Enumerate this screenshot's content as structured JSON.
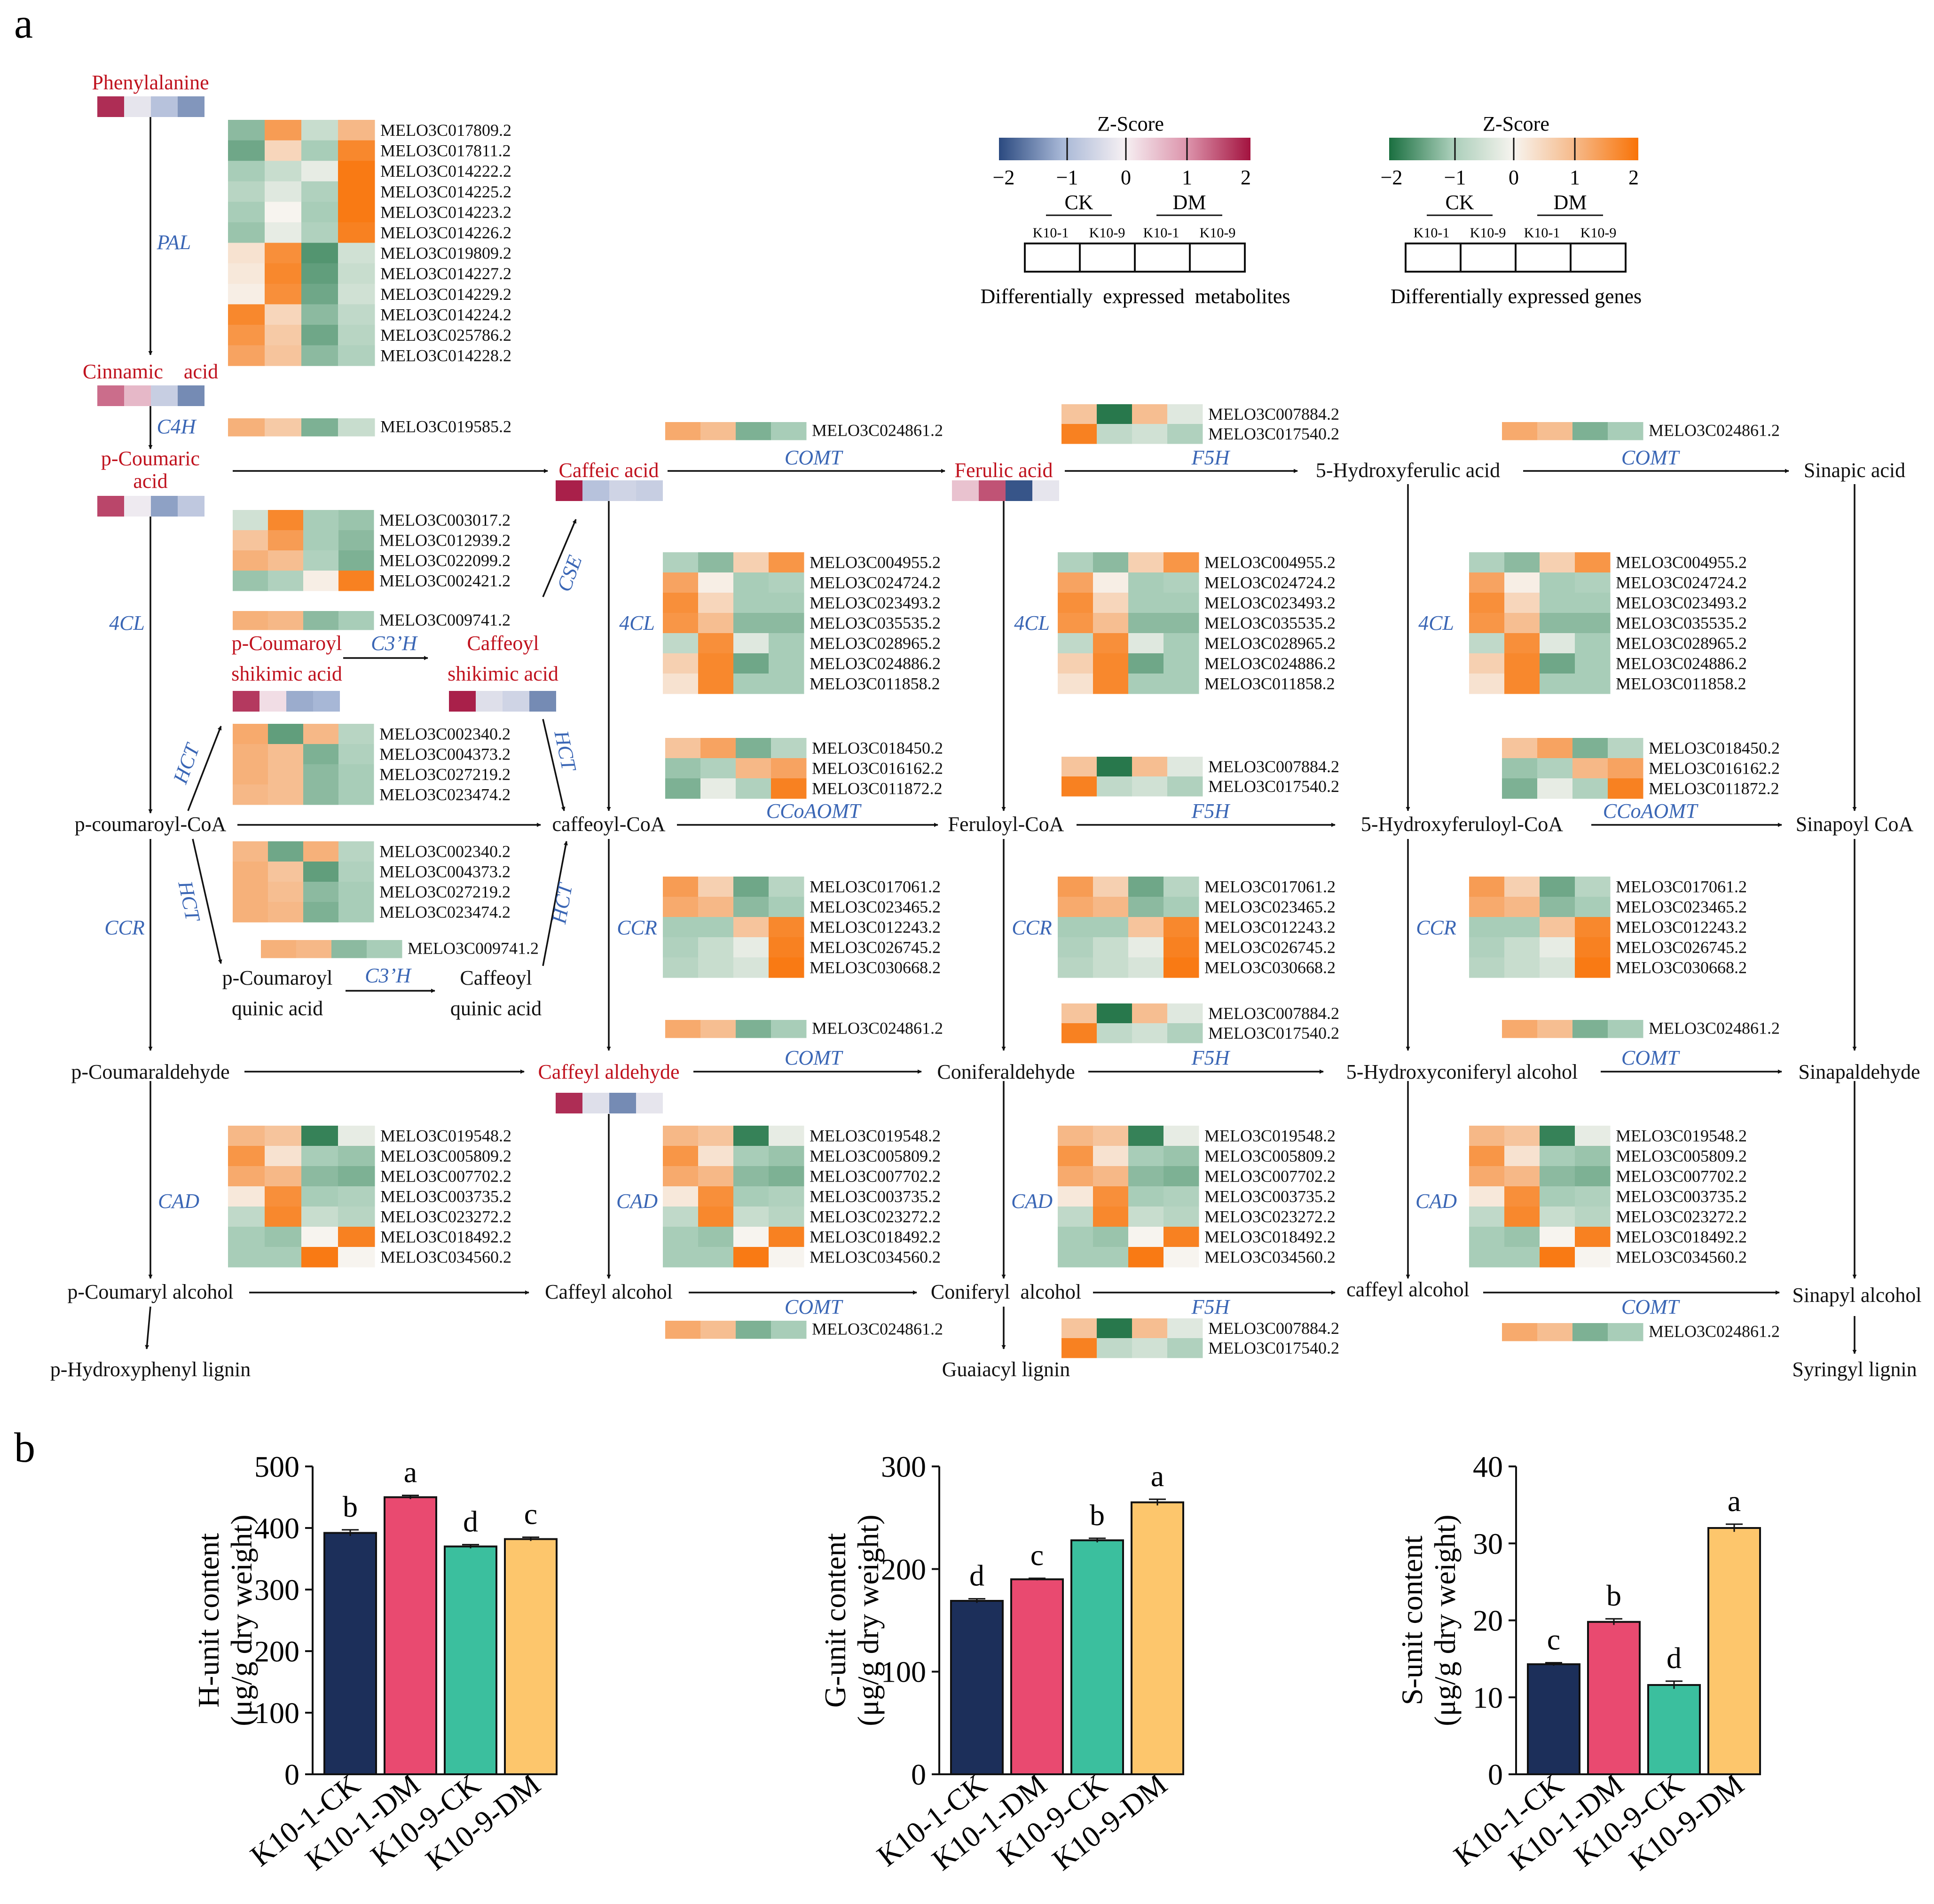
{
  "panel_labels": {
    "a": "a",
    "b": "b"
  },
  "colors": {
    "metab_scale": [
      "#2b4a80",
      "#a7b7d6",
      "#f6f0f3",
      "#dc93ab",
      "#a3133f"
    ],
    "gene_scale": [
      "#1a6f40",
      "#a8cdb8",
      "#f7f4ef",
      "#f6b887",
      "#f97307"
    ],
    "met_label": "#c0121e",
    "enzyme": "#3a66b5",
    "bar_fills": [
      "#1c2f5a",
      "#e94a70",
      "#3bbf9e",
      "#fdc66c"
    ]
  },
  "legend": {
    "zscore_title": "Z-Score",
    "scale_ticks": [
      "−2",
      "−1",
      "0",
      "1",
      "2"
    ],
    "group_ck": "CK",
    "group_dm": "DM",
    "samples": [
      "K10-1",
      "K10-9",
      "K10-1",
      "K10-9"
    ],
    "metab_caption": "Differentially  expressed  metabolites",
    "gene_caption": "Differentially expressed genes"
  },
  "metabolites": {
    "phenylalanine": {
      "label": "Phenylalanine",
      "z": [
        1.8,
        -0.2,
        -0.8,
        -1.3
      ]
    },
    "cinnamic": {
      "label": "Cinnamic    acid",
      "z": [
        1.3,
        0.6,
        -0.6,
        -1.4
      ]
    },
    "p_coumaric": {
      "label_l1": "p-Coumaric",
      "label_l2": "acid",
      "z": [
        1.6,
        -0.1,
        -1.2,
        -0.7
      ]
    },
    "caffeic": {
      "label": "Caffeic acid",
      "z": [
        1.9,
        -0.8,
        -0.5,
        -0.6
      ]
    },
    "ferulic": {
      "label": "Ferulic acid",
      "z": [
        0.5,
        1.5,
        -1.9,
        -0.2
      ]
    },
    "p_coumaroyl_shikimic": {
      "label_l1": "p-Coumaroyl",
      "label_l2": "shikimic acid",
      "z": [
        1.7,
        0.2,
        -1.1,
        -1.0
      ]
    },
    "caffeoyl_shikimic": {
      "label_l1": "Caffeoyl",
      "label_l2": "shikimic acid",
      "z": [
        1.9,
        -0.3,
        -0.5,
        -1.4
      ]
    },
    "caffeyl_aldehyde": {
      "label": "Caffeyl aldehyde",
      "z": [
        1.8,
        -0.3,
        -1.4,
        -0.2
      ]
    }
  },
  "compounds": {
    "five_hydroxyferulic_acid": "5-Hydroxyferulic acid",
    "sinapic_acid": "Sinapic acid",
    "p_coumaroyl_coa": "p-coumaroyl-CoA",
    "caffeoyl_coa": "caffeoyl-CoA",
    "feruloyl_coa": "Feruloyl-CoA",
    "five_hydroxyferuloyl_coa": "5-Hydroxyferuloyl-CoA",
    "sinapoyl_coa": "Sinapoyl CoA",
    "p_coumaroyl_quinic_l1": "p-Coumaroyl",
    "p_coumaroyl_quinic_l2": "quinic acid",
    "caffeoyl_quinic_l1": "Caffeoyl",
    "caffeoyl_quinic_l2": "quinic acid",
    "p_coumaraldehyde": "p-Coumaraldehyde",
    "coniferaldehyde": "Coniferaldehyde",
    "five_hydroxyconiferyl_alcohol": "5-Hydroxyconiferyl alcohol",
    "sinapaldehyde": "Sinapaldehyde",
    "p_coumaryl_alcohol": "p-Coumaryl alcohol",
    "caffeyl_alcohol_1": "Caffeyl alcohol",
    "coniferyl_alcohol": "Coniferyl  alcohol",
    "caffeyl_alcohol_2": "caffeyl alcohol",
    "sinapyl_alcohol": "Sinapyl alcohol",
    "p_hydroxyphenyl_lignin": "p-Hydroxyphenyl lignin",
    "guaiacyl_lignin": "Guaiacyl lignin",
    "syringyl_lignin": "Syringyl lignin"
  },
  "enzymes": {
    "pal": "PAL",
    "c4h": "C4H",
    "fourcl": "4CL",
    "ccr": "CCR",
    "cad": "CAD",
    "cse": "CSE",
    "c3h": "C3’H",
    "hct": "HCT",
    "comt": "COMT",
    "f5h": "F5H",
    "ccoaomt": "CCoAOMT"
  },
  "gene_sets": {
    "PAL": {
      "genes": [
        "MELO3C017809.2",
        "MELO3C017811.2",
        "MELO3C014222.2",
        "MELO3C014225.2",
        "MELO3C014223.2",
        "MELO3C014226.2",
        "MELO3C019809.2",
        "MELO3C014227.2",
        "MELO3C014229.2",
        "MELO3C014224.2",
        "MELO3C025786.2",
        "MELO3C014228.2"
      ],
      "z": [
        [
          -1.2,
          1.4,
          -0.6,
          1.0
        ],
        [
          -1.4,
          0.5,
          -1.0,
          1.7
        ],
        [
          -1.0,
          -0.6,
          -0.2,
          1.9
        ],
        [
          -0.8,
          -0.3,
          -0.9,
          1.9
        ],
        [
          -1.0,
          0.0,
          -1.0,
          1.9
        ],
        [
          -1.1,
          -0.2,
          -0.9,
          1.8
        ],
        [
          0.3,
          1.6,
          -1.6,
          -0.5
        ],
        [
          0.2,
          1.7,
          -1.5,
          -0.6
        ],
        [
          0.1,
          1.6,
          -1.4,
          -0.5
        ],
        [
          1.7,
          0.5,
          -1.2,
          -0.7
        ],
        [
          1.5,
          0.7,
          -1.4,
          -0.8
        ],
        [
          1.3,
          0.8,
          -1.2,
          -0.9
        ]
      ]
    },
    "C4H": {
      "genes": [
        "MELO3C019585.2"
      ],
      "z": [
        [
          1.1,
          0.7,
          -1.3,
          -0.6
        ]
      ]
    },
    "CSE": {
      "genes": [
        "MELO3C003017.2",
        "MELO3C012939.2",
        "MELO3C022099.2",
        "MELO3C002421.2"
      ],
      "z": [
        [
          -0.5,
          1.7,
          -1.0,
          -1.1
        ],
        [
          0.8,
          1.4,
          -1.0,
          -1.2
        ],
        [
          1.1,
          0.9,
          -0.9,
          -1.3
        ],
        [
          -1.1,
          -0.9,
          0.1,
          1.8
        ]
      ]
    },
    "CSE2": {
      "genes": [
        "MELO3C009741.2"
      ],
      "z": [
        [
          1.1,
          1.0,
          -1.2,
          -1.0
        ]
      ]
    },
    "HCT": {
      "genes": [
        "MELO3C002340.2",
        "MELO3C004373.2",
        "MELO3C027219.2",
        "MELO3C023474.2"
      ],
      "z": [
        [
          1.2,
          -1.5,
          1.0,
          -0.8
        ],
        [
          1.1,
          0.9,
          -1.3,
          -0.9
        ],
        [
          1.1,
          0.9,
          -1.2,
          -1.0
        ],
        [
          1.0,
          0.9,
          -1.2,
          -1.0
        ]
      ]
    },
    "HCT2": {
      "genes": [
        "MELO3C002340.2",
        "MELO3C004373.2",
        "MELO3C027219.2",
        "MELO3C023474.2"
      ],
      "z": [
        [
          1.0,
          -1.4,
          1.1,
          -0.8
        ],
        [
          1.1,
          0.8,
          -1.5,
          -0.9
        ],
        [
          1.1,
          0.9,
          -1.2,
          -1.0
        ],
        [
          1.1,
          1.0,
          -1.3,
          -1.0
        ]
      ]
    },
    "HCTQ": {
      "genes": [
        "MELO3C009741.2"
      ],
      "z": [
        [
          1.1,
          1.0,
          -1.2,
          -1.0
        ]
      ]
    },
    "FourCL": {
      "genes": [
        "MELO3C004955.2",
        "MELO3C024724.2",
        "MELO3C023493.2",
        "MELO3C035535.2",
        "MELO3C028965.2",
        "MELO3C024886.2",
        "MELO3C011858.2"
      ],
      "z": [
        [
          -0.9,
          -1.2,
          0.6,
          1.5
        ],
        [
          1.3,
          0.1,
          -1.0,
          -0.9
        ],
        [
          1.6,
          0.5,
          -1.0,
          -1.0
        ],
        [
          1.5,
          0.9,
          -1.2,
          -1.2
        ],
        [
          -0.7,
          1.6,
          -0.3,
          -1.0
        ],
        [
          0.6,
          1.7,
          -1.4,
          -1.0
        ],
        [
          0.3,
          1.7,
          -1.0,
          -1.0
        ]
      ]
    },
    "CCoAOMT": {
      "genes": [
        "MELO3C018450.2",
        "MELO3C016162.2",
        "MELO3C011872.2"
      ],
      "z": [
        [
          0.8,
          1.3,
          -1.3,
          -0.8
        ],
        [
          -1.1,
          -0.9,
          1.0,
          1.3
        ],
        [
          -1.3,
          -0.2,
          -0.9,
          1.8
        ]
      ]
    },
    "F5H": {
      "genes": [
        "MELO3C007884.2",
        "MELO3C017540.2"
      ],
      "z": [
        [
          0.8,
          -1.9,
          0.9,
          -0.3
        ],
        [
          1.8,
          -0.7,
          -0.5,
          -0.9
        ]
      ]
    },
    "COMT": {
      "genes": [
        "MELO3C024861.2"
      ],
      "z": [
        [
          1.2,
          0.9,
          -1.3,
          -1.0
        ]
      ]
    },
    "CCR": {
      "genes": [
        "MELO3C017061.2",
        "MELO3C023465.2",
        "MELO3C012243.2",
        "MELO3C026745.2",
        "MELO3C030668.2"
      ],
      "z": [
        [
          1.4,
          0.6,
          -1.4,
          -0.8
        ],
        [
          1.2,
          1.0,
          -1.2,
          -1.0
        ],
        [
          -1.0,
          -1.0,
          0.8,
          1.7
        ],
        [
          -0.9,
          -0.6,
          -0.2,
          1.8
        ],
        [
          -0.8,
          -0.6,
          -0.4,
          1.9
        ]
      ]
    },
    "CAD": {
      "genes": [
        "MELO3C019548.2",
        "MELO3C005809.2",
        "MELO3C007702.2",
        "MELO3C003735.2",
        "MELO3C023272.2",
        "MELO3C018492.2",
        "MELO3C034560.2"
      ],
      "z": [
        [
          1.0,
          0.8,
          -1.8,
          -0.2
        ],
        [
          1.5,
          0.3,
          -1.0,
          -1.1
        ],
        [
          1.2,
          1.0,
          -1.2,
          -1.3
        ],
        [
          0.2,
          1.6,
          -1.0,
          -0.9
        ],
        [
          -0.7,
          1.7,
          -0.6,
          -0.8
        ],
        [
          -1.0,
          -1.1,
          0.0,
          1.8
        ],
        [
          -1.0,
          -1.0,
          1.9,
          0.0
        ]
      ]
    }
  },
  "heat_blocks": [
    {
      "set": "PAL"
    },
    {
      "set": "C4H"
    },
    {
      "set": "CSE"
    },
    {
      "set": "CSE2"
    },
    {
      "set": "HCT"
    },
    {
      "set": "HCT2"
    },
    {
      "set": "HCTQ"
    },
    {
      "set": "FourCL"
    },
    {
      "set": "FourCL"
    },
    {
      "set": "FourCL"
    },
    {
      "set": "CCoAOMT"
    },
    {
      "set": "CCoAOMT"
    },
    {
      "set": "F5H"
    },
    {
      "set": "F5H"
    },
    {
      "set": "F5H"
    },
    {
      "set": "F5H"
    },
    {
      "set": "F5H"
    },
    {
      "set": "COMT"
    },
    {
      "set": "COMT"
    },
    {
      "set": "COMT"
    },
    {
      "set": "COMT"
    },
    {
      "set": "COMT"
    },
    {
      "set": "COMT"
    },
    {
      "set": "CCR"
    },
    {
      "set": "CCR"
    },
    {
      "set": "CCR"
    },
    {
      "set": "CAD"
    },
    {
      "set": "CAD"
    },
    {
      "set": "CAD"
    },
    {
      "set": "CAD"
    }
  ],
  "chart_data": [
    {
      "type": "bar",
      "title": "",
      "categories": [
        "K10-1-CK",
        "K10-1-DM",
        "K10-9-CK",
        "K10-9-DM"
      ],
      "values": [
        392,
        450,
        370,
        382
      ],
      "errors": [
        5,
        3,
        3,
        3
      ],
      "letters": [
        "b",
        "a",
        "d",
        "c"
      ],
      "ylabel": "H-unit content",
      "ylabel2": "(μg/g dry weight)",
      "ylim": [
        0,
        500
      ],
      "yticks": [
        0,
        100,
        200,
        300,
        400,
        500
      ]
    },
    {
      "type": "bar",
      "title": "",
      "categories": [
        "K10-1-CK",
        "K10-1-DM",
        "K10-9-CK",
        "K10-9-DM"
      ],
      "values": [
        169,
        190,
        228,
        265
      ],
      "errors": [
        2,
        1,
        2,
        3
      ],
      "letters": [
        "d",
        "c",
        "b",
        "a"
      ],
      "ylabel": "G-unit content",
      "ylabel2": "(μg/g dry weight)",
      "ylim": [
        0,
        300
      ],
      "yticks": [
        0,
        100,
        200,
        300
      ]
    },
    {
      "type": "bar",
      "title": "",
      "categories": [
        "K10-1-CK",
        "K10-1-DM",
        "K10-9-CK",
        "K10-9-DM"
      ],
      "values": [
        14.3,
        19.8,
        11.6,
        32.0
      ],
      "errors": [
        0.2,
        0.4,
        0.5,
        0.5
      ],
      "letters": [
        "c",
        "b",
        "d",
        "a"
      ],
      "ylabel": "S-unit content",
      "ylabel2": "(μg/g dry weight)",
      "ylim": [
        0,
        40
      ],
      "yticks": [
        0,
        10,
        20,
        30,
        40
      ]
    }
  ]
}
